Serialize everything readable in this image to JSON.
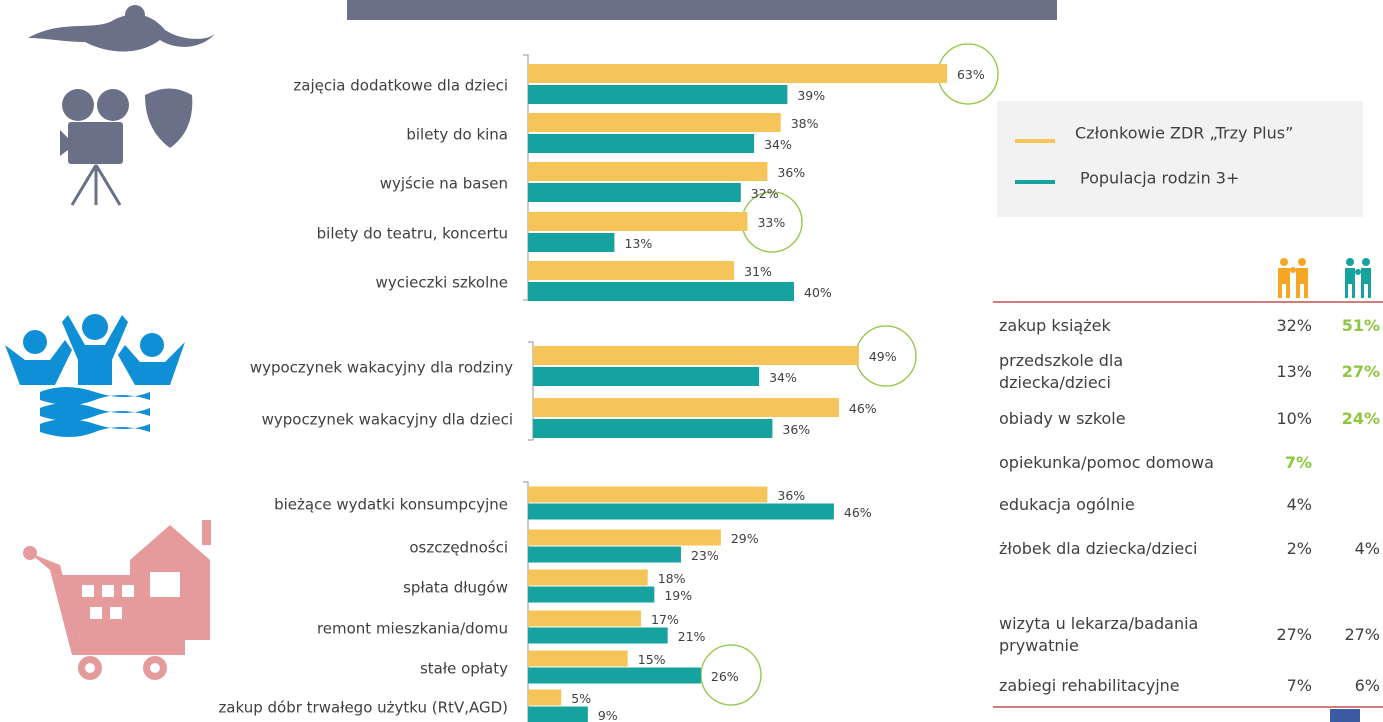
{
  "chart_data": [
    {
      "type": "bar",
      "orientation": "horizontal",
      "categories": [
        "zajęcia dodatkowe dla dzieci",
        "bilety do kina",
        "wyjście na basen",
        "bilety do teatru, koncertu",
        "wycieczki szkolne"
      ],
      "series": [
        {
          "name": "Członkowie ZDR „Trzy Plus”",
          "color": "#f5c55a",
          "values": [
            63,
            38,
            36,
            33,
            31
          ],
          "value_labels": [
            "63%",
            "38%",
            "36%",
            "33%",
            "31%"
          ]
        },
        {
          "name": "Populacja rodzin 3+",
          "color": "#16a39f",
          "values": [
            39,
            34,
            32,
            13,
            40
          ],
          "value_labels": [
            "39%",
            "34%",
            "32%",
            "13%",
            "40%"
          ]
        }
      ]
    },
    {
      "type": "bar",
      "orientation": "horizontal",
      "categories": [
        "wypoczynek wakacyjny dla rodziny",
        "wypoczynek wakacyjny dla dzieci"
      ],
      "series": [
        {
          "name": "Członkowie ZDR „Trzy Plus”",
          "color": "#f5c55a",
          "values": [
            49,
            46
          ],
          "value_labels": [
            "49%",
            "46%"
          ]
        },
        {
          "name": "Populacja rodzin 3+",
          "color": "#16a39f",
          "values": [
            34,
            36
          ],
          "value_labels": [
            "34%",
            "36%"
          ]
        }
      ]
    },
    {
      "type": "bar",
      "orientation": "horizontal",
      "categories": [
        "bieżące wydatki konsumpcyjne",
        "oszczędności",
        "spłata długów",
        "remont mieszkania/domu",
        "stałe opłaty",
        "zakup dóbr trwałego użytku (RtV,AGD)"
      ],
      "series": [
        {
          "name": "Członkowie ZDR „Trzy Plus”",
          "color": "#f5c55a",
          "values": [
            36,
            29,
            18,
            17,
            15,
            5
          ],
          "value_labels": [
            "36%",
            "29%",
            "18%",
            "17%",
            "15%",
            "5%"
          ]
        },
        {
          "name": "Populacja rodzin 3+",
          "color": "#16a39f",
          "values": [
            46,
            23,
            19,
            21,
            26,
            9
          ],
          "value_labels": [
            "46%",
            "23%",
            "19%",
            "21%",
            "26%",
            "9%"
          ]
        }
      ]
    }
  ],
  "table": {
    "highlight_color": "#8dc63f",
    "rows": [
      {
        "label": "zakup książek",
        "a": "32%",
        "b": "51%",
        "highlight": "b"
      },
      {
        "label": "przedszkole dla dziecka/dzieci",
        "a": "13%",
        "b": "27%",
        "highlight": "b"
      },
      {
        "label": "obiady w szkole",
        "a": "10%",
        "b": "24%",
        "highlight": "b"
      },
      {
        "label": "opiekunka/pomoc domowa",
        "a": "7%",
        "highlight": "a"
      },
      {
        "label": "edukacja ogólnie",
        "a": "4%"
      },
      {
        "label": "żłobek dla dziecka/dzieci",
        "a": "2%",
        "b": "4%"
      },
      {
        "label": "wizyta u lekarza/badania prywatnie",
        "a": "27%",
        "b": "27%"
      },
      {
        "label": "zabiegi rehabilitacyjne",
        "a": "7%",
        "b": "6%"
      }
    ]
  }
}
